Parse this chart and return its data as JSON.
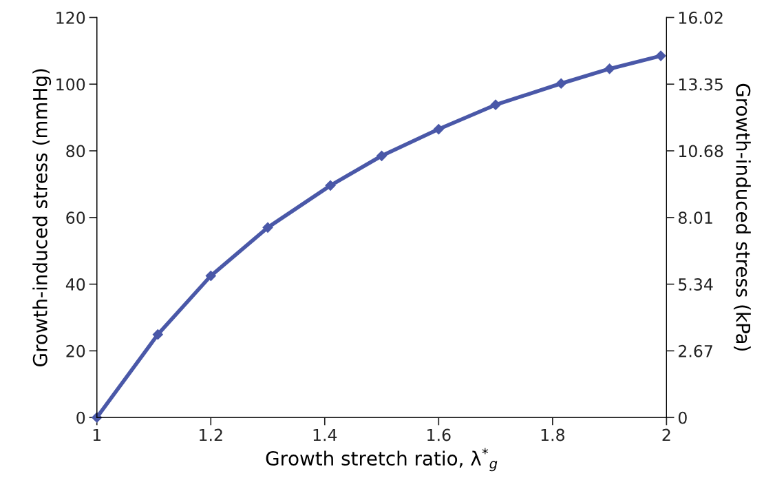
{
  "chart_data": {
    "type": "line",
    "xlabel": "Growth stretch ratio, λ$^{*}$$_{g}$",
    "ylabel": "Growth-induced stress (mmHg)",
    "y2label": "Growth-induced stress (kPa)",
    "x": [
      1.0,
      1.107,
      1.2,
      1.3,
      1.41,
      1.5,
      1.6,
      1.7,
      1.815,
      1.9,
      1.99
    ],
    "series": [
      {
        "color": "#4a58a8",
        "values": [
          0,
          24.9,
          42.5,
          57,
          69.6,
          78.5,
          86.5,
          93.8,
          100.2,
          104.6,
          108.5
        ]
      }
    ],
    "xlim": [
      1,
      2
    ],
    "xticks": [
      1,
      1.2,
      1.4,
      1.6,
      1.8,
      2
    ],
    "ylim": [
      0,
      120
    ],
    "yticks": [
      0,
      20,
      40,
      60,
      80,
      100,
      120
    ],
    "y2lim": [
      0,
      16.02
    ],
    "y2ticks": [
      0,
      2.67,
      5.34,
      8.01,
      10.68,
      13.35,
      16.02
    ],
    "marker": "diamond",
    "line_style": "solid",
    "grid": false,
    "legend": false
  }
}
